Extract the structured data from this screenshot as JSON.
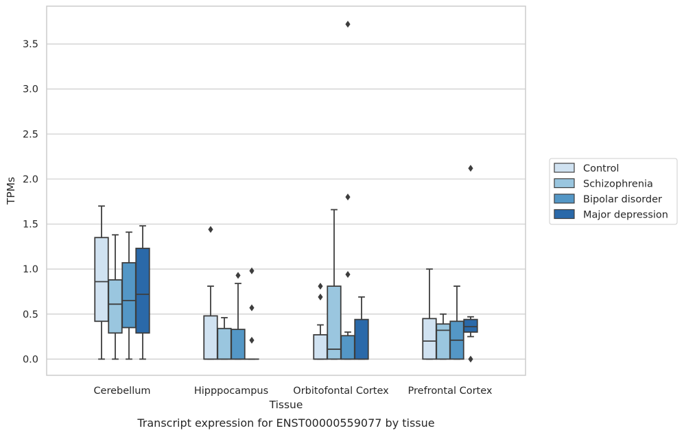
{
  "chart_data": {
    "type": "box",
    "xlabel": "Tissue",
    "ylabel": "TPMs",
    "caption": "Transcript expression for ENST00000559077 by tissue",
    "ylim": [
      -0.18,
      3.92
    ],
    "yticks": [
      0.0,
      0.5,
      1.0,
      1.5,
      2.0,
      2.5,
      3.0,
      3.5
    ],
    "ytick_labels": [
      "0.0",
      "0.5",
      "1.0",
      "1.5",
      "2.0",
      "2.5",
      "3.0",
      "3.5"
    ],
    "grid": "horizontal",
    "legend_position": "right",
    "categories": [
      "Cerebellum",
      "Hipppocampus",
      "Orbitofontal Cortex",
      "Prefrontal Cortex"
    ],
    "series": [
      {
        "name": "Control",
        "color": "#d0e2f1",
        "boxes": [
          {
            "q1": 0.42,
            "median": 0.86,
            "q3": 1.35,
            "whisker_low": 0.0,
            "whisker_high": 1.7,
            "outliers": []
          },
          {
            "q1": 0.0,
            "median": 0.0,
            "q3": 0.48,
            "whisker_low": 0.0,
            "whisker_high": 0.81,
            "outliers": [
              1.44
            ]
          },
          {
            "q1": 0.0,
            "median": 0.0,
            "q3": 0.27,
            "whisker_low": 0.0,
            "whisker_high": 0.38,
            "outliers": [
              0.69,
              0.81
            ]
          },
          {
            "q1": 0.0,
            "median": 0.2,
            "q3": 0.45,
            "whisker_low": 0.0,
            "whisker_high": 1.0,
            "outliers": []
          }
        ]
      },
      {
        "name": "Schizophrenia",
        "color": "#9ac6df",
        "boxes": [
          {
            "q1": 0.29,
            "median": 0.61,
            "q3": 0.88,
            "whisker_low": 0.0,
            "whisker_high": 1.38,
            "outliers": []
          },
          {
            "q1": 0.0,
            "median": 0.0,
            "q3": 0.34,
            "whisker_low": 0.0,
            "whisker_high": 0.46,
            "outliers": []
          },
          {
            "q1": 0.0,
            "median": 0.11,
            "q3": 0.81,
            "whisker_low": 0.0,
            "whisker_high": 1.66,
            "outliers": []
          },
          {
            "q1": 0.0,
            "median": 0.32,
            "q3": 0.39,
            "whisker_low": 0.0,
            "whisker_high": 0.5,
            "outliers": []
          }
        ]
      },
      {
        "name": "Bipolar disorder",
        "color": "#5497c6",
        "boxes": [
          {
            "q1": 0.35,
            "median": 0.65,
            "q3": 1.07,
            "whisker_low": 0.0,
            "whisker_high": 1.41,
            "outliers": []
          },
          {
            "q1": 0.0,
            "median": 0.0,
            "q3": 0.33,
            "whisker_low": 0.0,
            "whisker_high": 0.84,
            "outliers": [
              0.93
            ]
          },
          {
            "q1": 0.0,
            "median": 0.0,
            "q3": 0.26,
            "whisker_low": 0.0,
            "whisker_high": 0.3,
            "outliers": [
              0.94,
              1.8,
              3.72
            ]
          },
          {
            "q1": 0.0,
            "median": 0.21,
            "q3": 0.42,
            "whisker_low": 0.0,
            "whisker_high": 0.81,
            "outliers": []
          }
        ]
      },
      {
        "name": "Major depression",
        "color": "#2a69a9",
        "boxes": [
          {
            "q1": 0.29,
            "median": 0.72,
            "q3": 1.23,
            "whisker_low": 0.0,
            "whisker_high": 1.48,
            "outliers": []
          },
          {
            "q1": 0.0,
            "median": 0.0,
            "q3": 0.0,
            "whisker_low": 0.0,
            "whisker_high": 0.0,
            "outliers": [
              0.21,
              0.57,
              0.98
            ]
          },
          {
            "q1": 0.0,
            "median": 0.0,
            "q3": 0.44,
            "whisker_low": 0.0,
            "whisker_high": 0.69,
            "outliers": []
          },
          {
            "q1": 0.3,
            "median": 0.36,
            "q3": 0.44,
            "whisker_low": 0.25,
            "whisker_high": 0.47,
            "outliers": [
              0.0,
              2.12
            ]
          }
        ]
      }
    ]
  }
}
